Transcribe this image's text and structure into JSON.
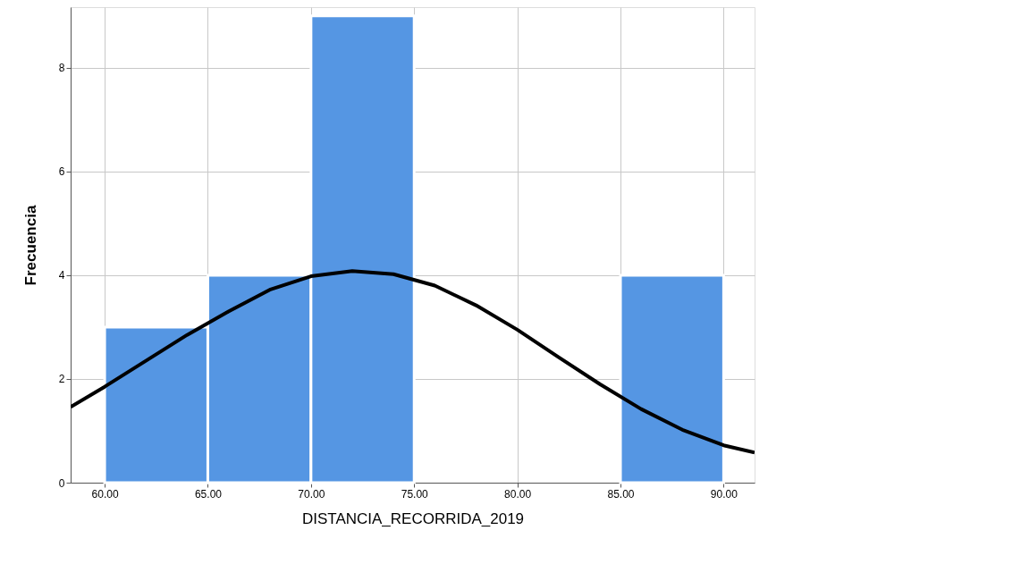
{
  "chart_data": {
    "type": "histogram",
    "xlabel": "DISTANCIA_RECORRIDA_2019",
    "ylabel": "Frecuencia",
    "bins": [
      60,
      65,
      70,
      75,
      80,
      85,
      90
    ],
    "values": [
      3,
      4,
      9,
      0,
      0,
      4
    ],
    "color": "#5596e3",
    "series": [
      {
        "type": "line",
        "color": "#000000",
        "x": [
          58.35,
          60,
          62,
          64,
          66,
          68,
          70,
          72,
          74,
          76,
          78,
          80,
          82,
          84,
          86,
          88,
          90,
          91.5
        ],
        "values": [
          1.46,
          1.85,
          2.35,
          2.85,
          3.3,
          3.72,
          3.98,
          4.08,
          4.02,
          3.8,
          3.42,
          2.95,
          2.42,
          1.9,
          1.42,
          1.02,
          0.72,
          0.58
        ]
      }
    ],
    "xlim": [
      58.35,
      91.5
    ],
    "ylim": [
      0,
      9.17
    ],
    "xticks": [
      {
        "value": 60,
        "label": "60.00"
      },
      {
        "value": 65,
        "label": "65.00"
      },
      {
        "value": 70,
        "label": "70.00"
      },
      {
        "value": 75,
        "label": "75.00"
      },
      {
        "value": 80,
        "label": "80.00"
      },
      {
        "value": 85,
        "label": "85.00"
      },
      {
        "value": 90,
        "label": "90.00"
      }
    ],
    "yticks": [
      0,
      2,
      4,
      6,
      8
    ],
    "grid": true
  }
}
